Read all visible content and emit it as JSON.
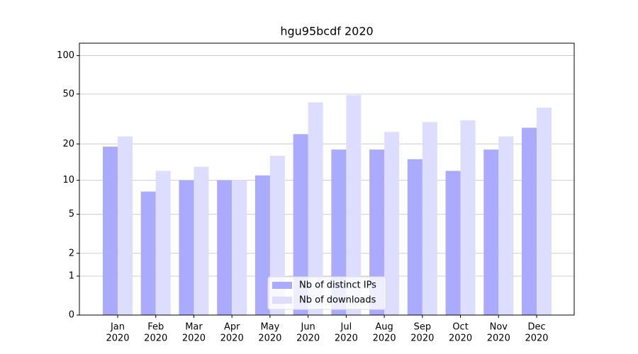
{
  "chart_data": {
    "type": "bar",
    "title": "hgu95bcdf 2020",
    "categories": [
      [
        "Jan",
        "2020"
      ],
      [
        "Feb",
        "2020"
      ],
      [
        "Mar",
        "2020"
      ],
      [
        "Apr",
        "2020"
      ],
      [
        "May",
        "2020"
      ],
      [
        "Jun",
        "2020"
      ],
      [
        "Jul",
        "2020"
      ],
      [
        "Aug",
        "2020"
      ],
      [
        "Sep",
        "2020"
      ],
      [
        "Oct",
        "2020"
      ],
      [
        "Nov",
        "2020"
      ],
      [
        "Dec",
        "2020"
      ]
    ],
    "series": [
      {
        "name": "Nb of distinct IPs",
        "color": "#aaaaff",
        "values": [
          19,
          8,
          10,
          10,
          11,
          24,
          18,
          18,
          15,
          12,
          18,
          27
        ]
      },
      {
        "name": "Nb of downloads",
        "color": "#ddddff",
        "values": [
          23,
          12,
          13,
          10,
          16,
          43,
          49,
          25,
          30,
          31,
          23,
          39
        ]
      }
    ],
    "yscale": "log1p",
    "ylim": [
      0,
      125
    ],
    "yticks": [
      0,
      1,
      2,
      5,
      10,
      20,
      50,
      100
    ],
    "grid": true,
    "legend": "lower center"
  }
}
